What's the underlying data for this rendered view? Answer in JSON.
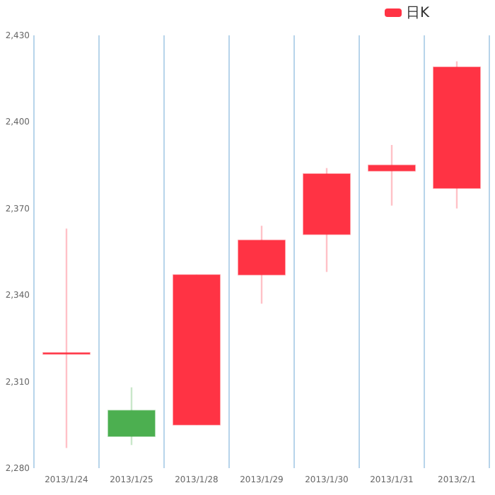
{
  "chart_data": {
    "type": "candlestick",
    "categories": [
      "2013/1/24",
      "2013/1/25",
      "2013/1/28",
      "2013/1/29",
      "2013/1/30",
      "2013/1/31",
      "2013/2/1"
    ],
    "series": [
      {
        "name": "日K",
        "color": "#ff3344",
        "ohlc": [
          [
            2320,
            2363,
            2287,
            2320
          ],
          [
            2300,
            2308,
            2288,
            2291
          ],
          [
            2295,
            2347,
            2295,
            2347
          ],
          [
            2347,
            2364,
            2337,
            2359
          ],
          [
            2361,
            2384,
            2348,
            2382
          ],
          [
            2383,
            2392,
            2371,
            2385
          ],
          [
            2377,
            2421,
            2370,
            2419
          ]
        ],
        "colors": [
          "#ff3344",
          "#4caf50",
          "#ff3344",
          "#ff3344",
          "#ff3344",
          "#ff3344",
          "#ff3344"
        ]
      }
    ],
    "ylim": [
      2280,
      2430
    ],
    "yticks": [
      {
        "value": 2280,
        "label": "2,280"
      },
      {
        "value": 2310,
        "label": "2,310"
      },
      {
        "value": 2340,
        "label": "2,340"
      },
      {
        "value": 2370,
        "label": "2,370"
      },
      {
        "value": 2400,
        "label": "2,400"
      },
      {
        "value": 2430,
        "label": "2,430"
      }
    ],
    "grid": "x",
    "legend": "top right"
  }
}
